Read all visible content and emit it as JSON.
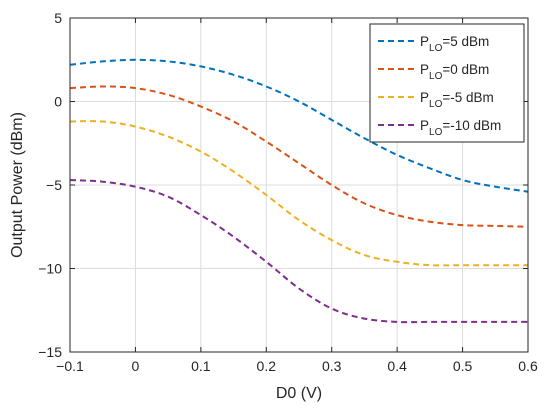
{
  "chart_data": {
    "type": "line",
    "xlabel": "D0 (V)",
    "ylabel": "Output Power (dBm)",
    "xlim": [
      -0.1,
      0.6
    ],
    "ylim": [
      -15,
      5
    ],
    "xticks": [
      -0.1,
      0,
      0.1,
      0.2,
      0.3,
      0.4,
      0.5,
      0.6
    ],
    "xtick_labels": [
      "−0.1",
      "0",
      "0.1",
      "0.2",
      "0.3",
      "0.4",
      "0.5",
      "0.6"
    ],
    "yticks": [
      -15,
      -10,
      -5,
      0,
      5
    ],
    "ytick_labels": [
      "−15",
      "−10",
      "−5",
      "0",
      "5"
    ],
    "grid": true,
    "line_style": "dashed",
    "legend_position": "top-right",
    "x": [
      -0.1,
      -0.05,
      0,
      0.05,
      0.1,
      0.15,
      0.2,
      0.25,
      0.3,
      0.35,
      0.4,
      0.45,
      0.5,
      0.55,
      0.6
    ],
    "series": [
      {
        "name": "P_LO=5 dBm",
        "legend_main": "P",
        "legend_sub": "LO",
        "legend_rest": "=5 dBm",
        "color": "#0072BD",
        "values": [
          2.2,
          2.4,
          2.5,
          2.4,
          2.1,
          1.6,
          0.9,
          0.0,
          -1.1,
          -2.2,
          -3.2,
          -4.0,
          -4.7,
          -5.1,
          -5.4
        ]
      },
      {
        "name": "P_LO=0 dBm",
        "legend_main": "P",
        "legend_sub": "LO",
        "legend_rest": "=0 dBm",
        "color": "#D95319",
        "values": [
          0.8,
          0.9,
          0.8,
          0.4,
          -0.3,
          -1.2,
          -2.4,
          -3.7,
          -5.0,
          -6.1,
          -6.8,
          -7.2,
          -7.4,
          -7.45,
          -7.5
        ]
      },
      {
        "name": "P_LO=-5 dBm",
        "legend_main": "P",
        "legend_sub": "LO",
        "legend_rest": "=-5 dBm",
        "color": "#EDB120",
        "values": [
          -1.2,
          -1.2,
          -1.5,
          -2.1,
          -3.0,
          -4.2,
          -5.6,
          -7.1,
          -8.3,
          -9.2,
          -9.6,
          -9.8,
          -9.8,
          -9.8,
          -9.8
        ]
      },
      {
        "name": "P_LO=-10 dBm",
        "legend_main": "P",
        "legend_sub": "LO",
        "legend_rest": "=-10 dBm",
        "color": "#7E2F8E",
        "values": [
          -4.7,
          -4.8,
          -5.1,
          -5.7,
          -6.8,
          -8.1,
          -9.6,
          -11.2,
          -12.4,
          -13.0,
          -13.2,
          -13.2,
          -13.2,
          -13.2,
          -13.2
        ]
      }
    ]
  }
}
